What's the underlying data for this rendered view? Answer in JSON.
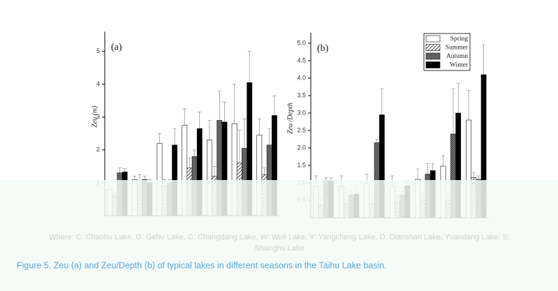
{
  "chart_data": [
    {
      "type": "bar",
      "panel_label": "(a)",
      "y_label": "Zeu (m)",
      "categories": [
        null,
        null,
        null,
        null,
        null,
        null,
        null
      ],
      "ylim": [
        0,
        5.6
      ],
      "yticks": [
        1,
        2,
        3,
        4,
        5
      ],
      "series": [
        {
          "name": "Spring",
          "color": "#ffffff",
          "hatch": "none",
          "values": [
            0.8,
            1.1,
            2.2,
            2.75,
            2.3,
            2.8,
            2.45
          ],
          "errors": [
            0.1,
            0.1,
            0.3,
            0.5,
            0.6,
            1.2,
            0.5
          ]
        },
        {
          "name": "Summer",
          "color": "#ffffff",
          "hatch": "diagonal",
          "values": [
            0.6,
            1.05,
            0.9,
            1.45,
            1.2,
            1.6,
            1.25
          ],
          "errors": [
            0.1,
            0.2,
            0.2,
            0.3,
            0.3,
            1.0,
            0.2
          ]
        },
        {
          "name": "Autumn",
          "color": "#8a8a8a",
          "hatch": "cross",
          "values": [
            1.3,
            1.1,
            1.0,
            1.8,
            2.9,
            2.05,
            2.15
          ],
          "errors": [
            0.15,
            0.1,
            0.1,
            0.2,
            0.9,
            0.9,
            0.5
          ]
        },
        {
          "name": "Winter",
          "color": "#000000",
          "hatch": "none",
          "values": [
            1.33,
            1.0,
            2.15,
            2.65,
            2.85,
            4.05,
            3.05
          ],
          "errors": [
            0.1,
            0.1,
            0.5,
            0.5,
            0.6,
            0.95,
            0.6
          ]
        }
      ]
    },
    {
      "type": "bar",
      "panel_label": "(b)",
      "y_label": "Zeu /Depth",
      "legend": "upper right",
      "categories": [
        null,
        null,
        null,
        null,
        null,
        null,
        null
      ],
      "ylim": [
        0,
        5.3
      ],
      "yticks": [
        0.5,
        {
          "value": 1,
          "label": "1.0"
        },
        1.5,
        {
          "value": 2,
          "label": "2.0"
        },
        2.5,
        {
          "value": 3,
          "label": "3.0"
        },
        3.5,
        {
          "value": 4,
          "label": "4.0"
        },
        4.5,
        {
          "value": 5,
          "label": "5.0"
        }
      ],
      "series": [
        {
          "name": "Spring",
          "color": "#ffffff",
          "hatch": "none",
          "values": [
            0.9,
            0.9,
            1.0,
            0.9,
            1.1,
            1.48,
            2.8
          ],
          "errors": [
            0.3,
            0.3,
            0.25,
            0.3,
            0.3,
            0.3,
            0.85
          ]
        },
        {
          "name": "Summer",
          "color": "#ffffff",
          "hatch": "diagonal",
          "values": [
            0.35,
            0.4,
            0.4,
            0.45,
            0.5,
            0.5,
            1.15
          ],
          "errors": [
            0.2,
            0.1,
            0.1,
            0.2,
            0.2,
            0.2,
            0.15
          ]
        },
        {
          "name": "Autumn",
          "color": "#8a8a8a",
          "hatch": "cross",
          "values": [
            1.05,
            0.65,
            2.15,
            0.65,
            1.25,
            2.4,
            1.1
          ],
          "errors": [
            0.1,
            0.1,
            0.1,
            0.1,
            0.3,
            1.3,
            0.1
          ]
        },
        {
          "name": "Winter",
          "color": "#000000",
          "hatch": "none",
          "values": [
            1.05,
            0.68,
            2.95,
            0.92,
            1.35,
            3.0,
            4.1
          ],
          "errors": [
            0.1,
            0.2,
            0.75,
            0.1,
            0.2,
            0.85,
            0.85
          ]
        }
      ]
    }
  ],
  "notes": [
    "Where: C: Chaohu Lake, G: Gehu Lake, C: Changdang Lake, W: Wuli Lake, Y: Yangcheng Lake, D: Dianshan Lake, Yuandang Lake, S:",
    "Shanghu Lake"
  ],
  "caption": "Figure 5. Zeu (a) and Zeu/Depth (b) of typical lakes in different seasons in the Taihu Lake basin."
}
